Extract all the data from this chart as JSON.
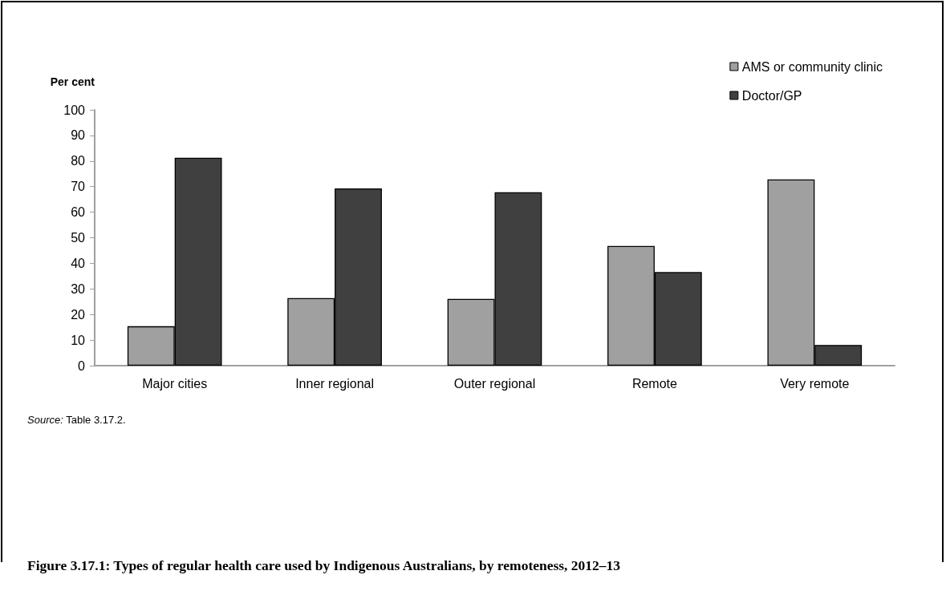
{
  "chart_data": {
    "type": "bar",
    "title": "Figure 3.17.1: Types of regular health care used by Indigenous Australians, by remoteness, 2012–13",
    "ylabel": "Per cent",
    "annotations": [
      "Source: Table 3.17.2."
    ],
    "categories": [
      "Major cities",
      "Inner regional",
      "Outer regional",
      "Remote",
      "Very remote"
    ],
    "series": [
      {
        "name": "AMS or community clinic",
        "color": "#a0a0a0",
        "values": [
          15.4,
          26.4,
          26.1,
          46.8,
          72.8
        ]
      },
      {
        "name": "Doctor/GP",
        "color": "#404040",
        "values": [
          81.3,
          69.3,
          67.8,
          36.6,
          8.1
        ]
      }
    ],
    "ylim": [
      0,
      100
    ],
    "yticks": [
      0,
      10,
      20,
      30,
      40,
      50,
      60,
      70,
      80,
      90,
      100
    ],
    "grid": false,
    "legend": "top right"
  }
}
